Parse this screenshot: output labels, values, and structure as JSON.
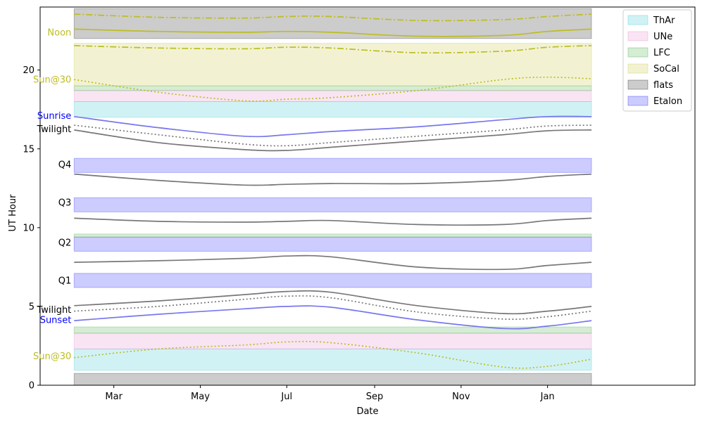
{
  "chart_data": {
    "type": "area",
    "title": "",
    "xlabel": "Date",
    "ylabel": "UT Hour",
    "x_range": [
      "2023-02-01",
      "2024-02-01"
    ],
    "xlim": [
      "2023-01-08",
      "2024-04-14"
    ],
    "ylim": [
      0,
      24
    ],
    "x_ticks": [
      {
        "date": "2023-03-01",
        "label": "Mar"
      },
      {
        "date": "2023-05-01",
        "label": "May"
      },
      {
        "date": "2023-07-01",
        "label": "Jul"
      },
      {
        "date": "2023-09-01",
        "label": "Sep"
      },
      {
        "date": "2023-11-01",
        "label": "Nov"
      },
      {
        "date": "2024-01-01",
        "label": "Jan"
      }
    ],
    "y_ticks": [
      0,
      5,
      10,
      15,
      20
    ],
    "grid": false,
    "legend_position": "top-right",
    "legend": [
      {
        "label": "ThAr",
        "color": "#17becf"
      },
      {
        "label": "UNe",
        "color": "#e377c2"
      },
      {
        "label": "LFC",
        "color": "#2ca02c"
      },
      {
        "label": "SoCal",
        "color": "#bcbd22"
      },
      {
        "label": "flats",
        "color": "#000000"
      },
      {
        "label": "Etalon",
        "color": "#0000ff"
      }
    ],
    "bands": [
      {
        "category": "flats",
        "y0": 0.0,
        "y1": 0.75
      },
      {
        "category": "ThAr",
        "y0": 0.95,
        "y1": 2.3
      },
      {
        "category": "UNe",
        "y0": 2.3,
        "y1": 3.3
      },
      {
        "category": "LFC",
        "y0": 3.3,
        "y1": 3.7
      },
      {
        "category": "Etalon",
        "y0": 6.2,
        "y1": 7.1
      },
      {
        "category": "Etalon",
        "y0": 8.5,
        "y1": 9.4
      },
      {
        "category": "LFC",
        "y0": 9.4,
        "y1": 9.6
      },
      {
        "category": "Etalon",
        "y0": 11.0,
        "y1": 11.9
      },
      {
        "category": "Etalon",
        "y0": 13.5,
        "y1": 14.4
      },
      {
        "category": "ThAr",
        "y0": 17.0,
        "y1": 18.0
      },
      {
        "category": "UNe",
        "y0": 18.0,
        "y1": 18.7
      },
      {
        "category": "LFC",
        "y0": 18.7,
        "y1": 19.0
      },
      {
        "category": "SoCal",
        "y0": 19.0,
        "y1": 21.7
      },
      {
        "category": "flats",
        "y0": 22.0,
        "y1": 23.9
      }
    ],
    "x_samples": [
      "2023-02-01",
      "2023-04-01",
      "2023-06-01",
      "2023-07-01",
      "2023-08-01",
      "2023-10-01",
      "2023-12-01",
      "2024-01-01",
      "2024-02-01"
    ],
    "series": [
      {
        "style": "yellow-dashdot",
        "values": [
          23.55,
          23.35,
          23.3,
          23.4,
          23.4,
          23.15,
          23.2,
          23.4,
          23.55
        ]
      },
      {
        "style": "yellow-solid",
        "values": [
          22.6,
          22.45,
          22.4,
          22.45,
          22.4,
          22.15,
          22.2,
          22.45,
          22.6
        ]
      },
      {
        "style": "yellow-dashdot",
        "values": [
          21.55,
          21.4,
          21.35,
          21.45,
          21.4,
          21.1,
          21.2,
          21.45,
          21.55
        ]
      },
      {
        "style": "yellow-dotted",
        "values": [
          19.4,
          18.6,
          18.05,
          18.15,
          18.25,
          18.7,
          19.4,
          19.55,
          19.45
        ]
      },
      {
        "style": "blue-solid",
        "values": [
          17.05,
          16.35,
          15.8,
          15.9,
          16.1,
          16.4,
          16.85,
          17.05,
          17.05
        ]
      },
      {
        "style": "gray-dotted",
        "values": [
          16.5,
          15.9,
          15.3,
          15.2,
          15.4,
          15.8,
          16.2,
          16.45,
          16.5
        ]
      },
      {
        "style": "gray-solid",
        "values": [
          16.2,
          15.4,
          14.95,
          14.9,
          15.1,
          15.5,
          15.9,
          16.15,
          16.2
        ]
      },
      {
        "style": "gray-solid",
        "values": [
          13.4,
          13.0,
          12.7,
          12.75,
          12.8,
          12.8,
          13.0,
          13.25,
          13.4
        ]
      },
      {
        "style": "gray-solid",
        "values": [
          10.6,
          10.4,
          10.35,
          10.4,
          10.45,
          10.2,
          10.2,
          10.45,
          10.6
        ]
      },
      {
        "style": "gray-solid",
        "values": [
          7.8,
          7.9,
          8.05,
          8.2,
          8.15,
          7.5,
          7.35,
          7.6,
          7.8
        ]
      },
      {
        "style": "gray-solid",
        "values": [
          5.05,
          5.35,
          5.75,
          5.95,
          5.9,
          5.05,
          4.55,
          4.7,
          5.0
        ]
      },
      {
        "style": "gray-dotted",
        "values": [
          4.7,
          5.0,
          5.45,
          5.65,
          5.55,
          4.65,
          4.2,
          4.35,
          4.7
        ]
      },
      {
        "style": "blue-solid",
        "values": [
          4.1,
          4.5,
          4.85,
          5.0,
          4.95,
          4.15,
          3.6,
          3.75,
          4.1
        ]
      },
      {
        "style": "yellow-dotted",
        "values": [
          1.75,
          2.3,
          2.55,
          2.75,
          2.7,
          2.05,
          1.15,
          1.2,
          1.65
        ]
      }
    ],
    "annotations": [
      {
        "text": "Noon",
        "y": 22.4,
        "color": "#bcbd22"
      },
      {
        "text": "Sun@30",
        "y": 19.4,
        "color": "#bcbd22"
      },
      {
        "text": "Sunrise",
        "y": 17.1,
        "color": "#0000ff"
      },
      {
        "text": "Twilight",
        "y": 16.25,
        "color": "#000000"
      },
      {
        "text": "Q4",
        "y": 14.0,
        "color": "#000000"
      },
      {
        "text": "Q3",
        "y": 11.6,
        "color": "#000000"
      },
      {
        "text": "Q2",
        "y": 9.05,
        "color": "#000000"
      },
      {
        "text": "Q1",
        "y": 6.65,
        "color": "#000000"
      },
      {
        "text": "Twilight",
        "y": 4.8,
        "color": "#000000"
      },
      {
        "text": "Sunset",
        "y": 4.15,
        "color": "#0000ff"
      },
      {
        "text": "Sun@30",
        "y": 1.85,
        "color": "#bcbd22"
      }
    ]
  }
}
